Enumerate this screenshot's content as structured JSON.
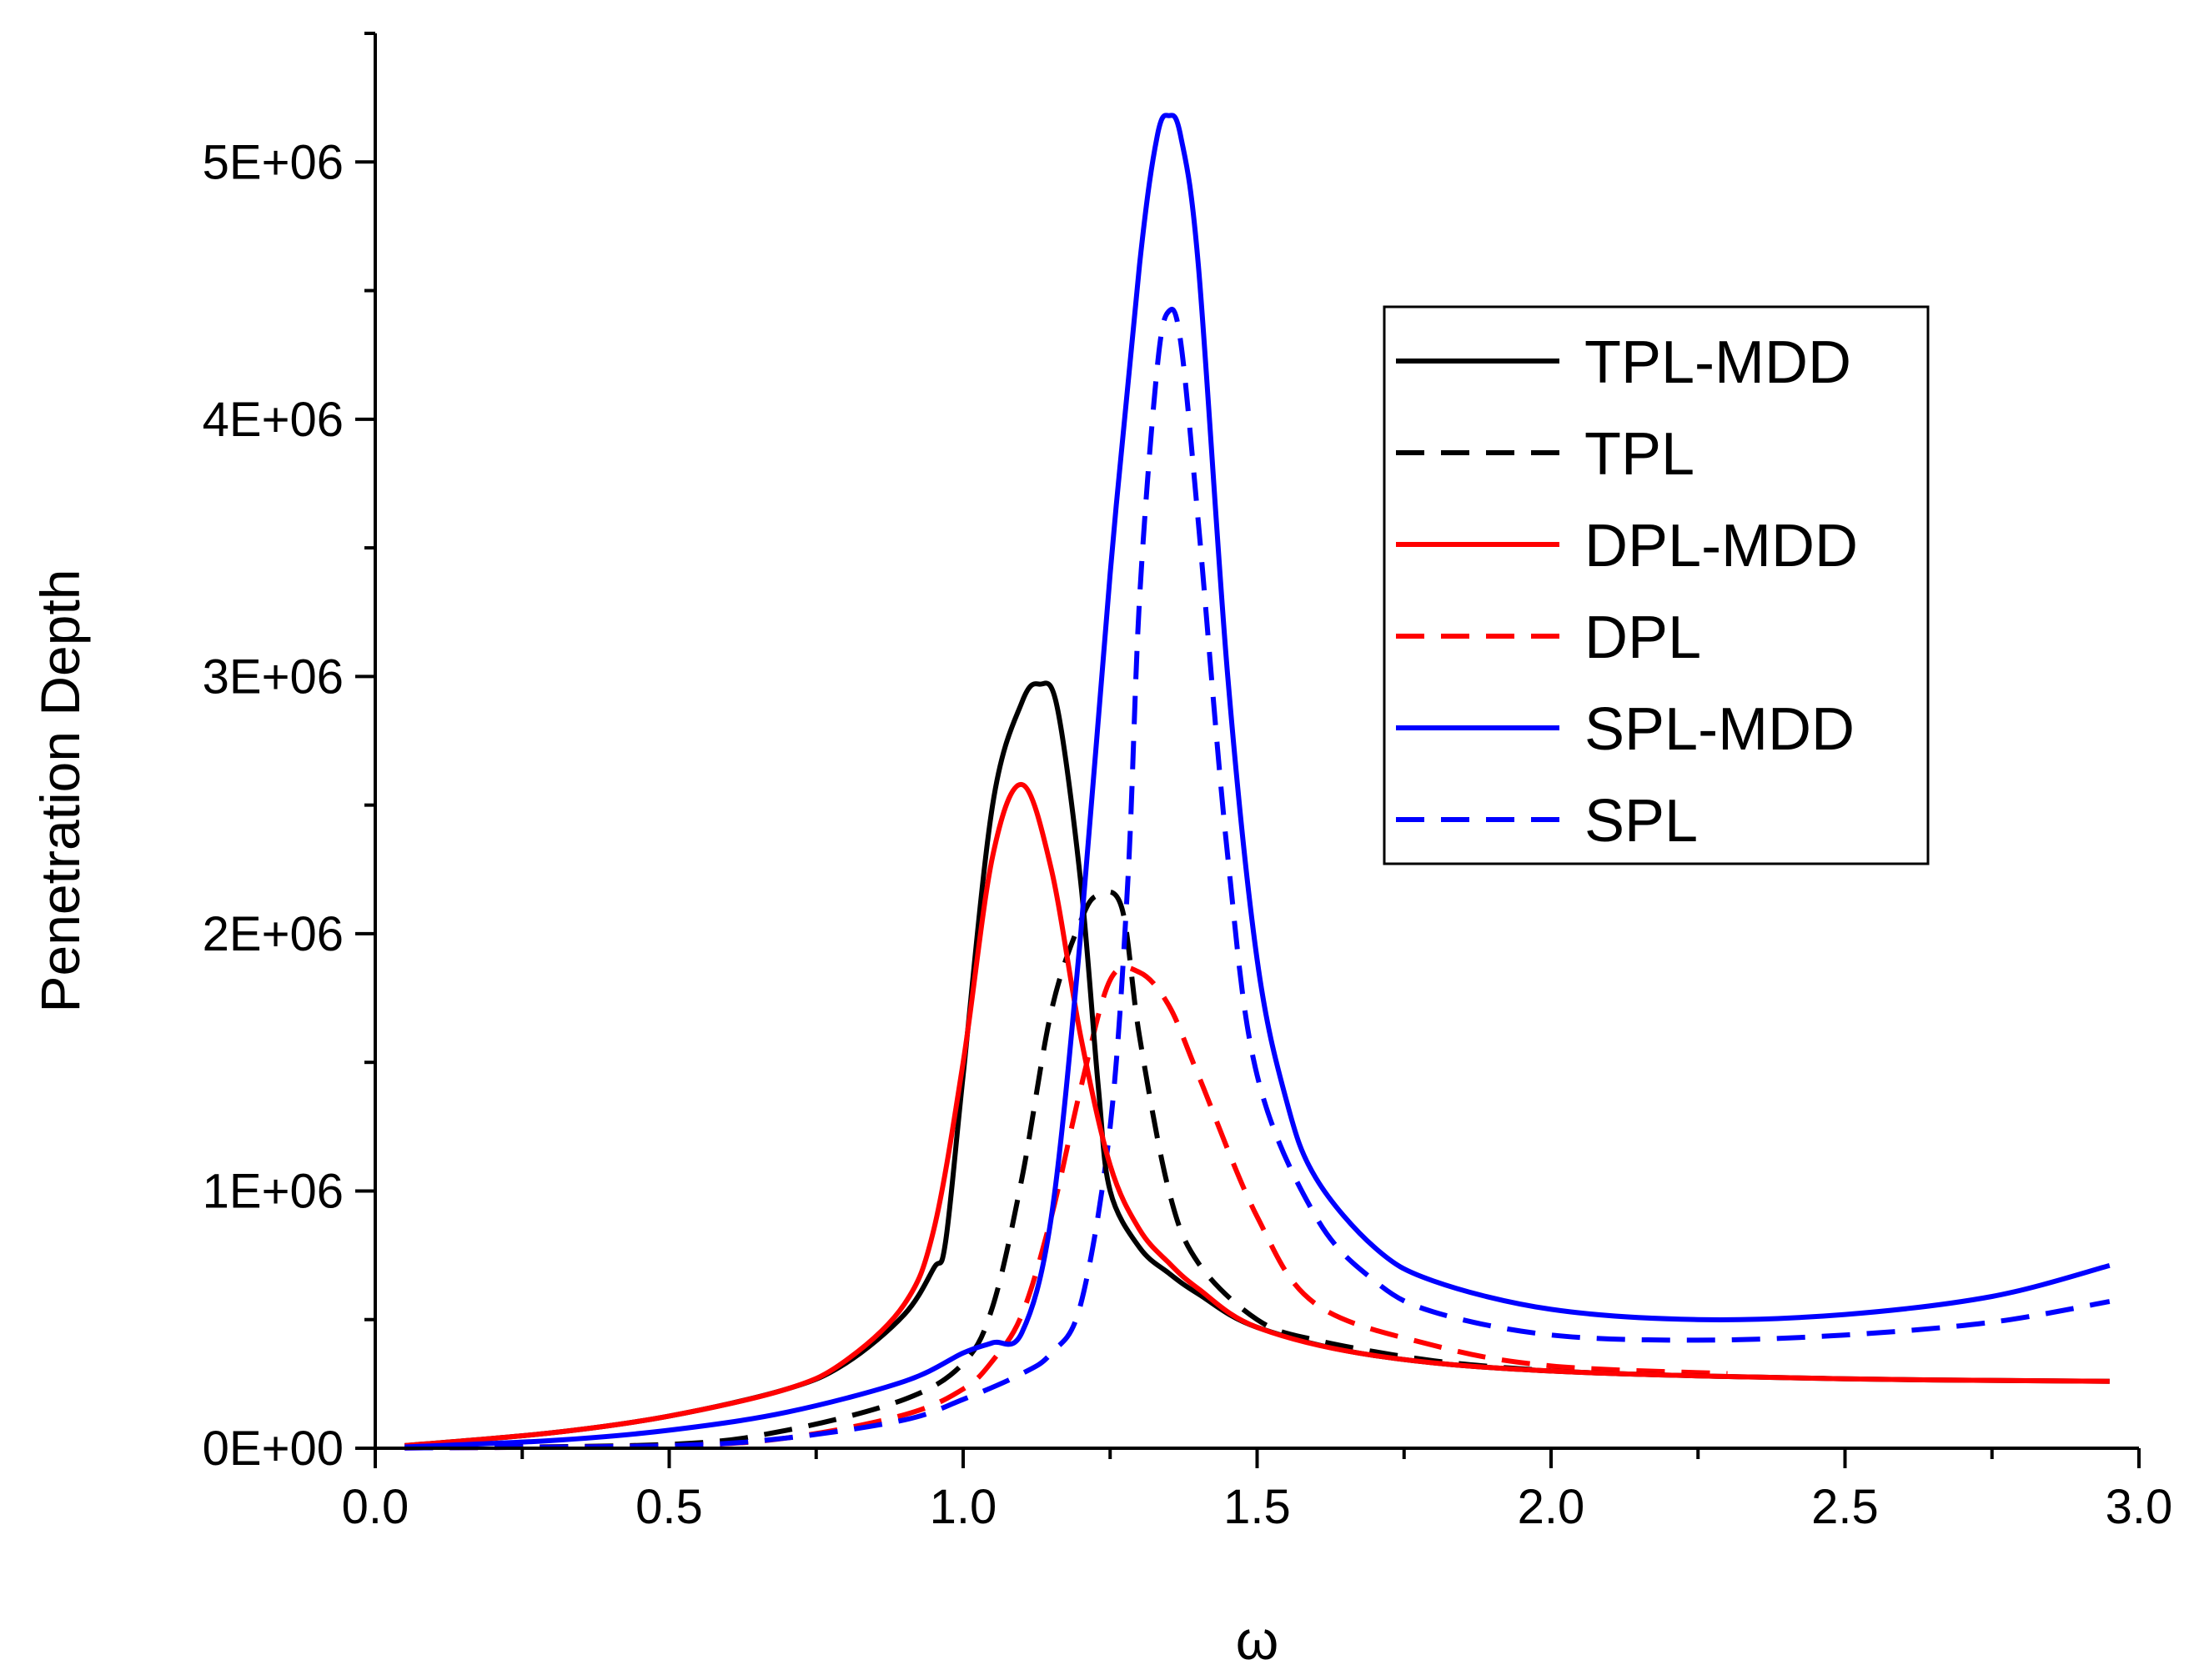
{
  "chart_data": {
    "type": "line",
    "title": "",
    "xlabel": "ω",
    "ylabel": "Penetration Depth",
    "xlim": [
      0.0,
      3.0
    ],
    "ylim": [
      0,
      5500000
    ],
    "x_ticks": [
      0.0,
      0.5,
      1.0,
      1.5,
      2.0,
      2.5,
      3.0
    ],
    "x_tick_labels": [
      "0.0",
      "0.5",
      "1.0",
      "1.5",
      "2.0",
      "2.5",
      "3.0"
    ],
    "y_ticks": [
      0,
      1000000,
      2000000,
      3000000,
      4000000,
      5000000
    ],
    "y_tick_labels": [
      "0E+00",
      "1E+06",
      "2E+06",
      "3E+06",
      "4E+06",
      "5E+06"
    ],
    "grid": false,
    "legend_position": "top-right",
    "series": [
      {
        "name": "TPL-MDD",
        "color": "#000000",
        "dash": "solid",
        "x": [
          0.05,
          0.3,
          0.5,
          0.7,
          0.8,
          0.9,
          0.95,
          0.97,
          1.0,
          1.05,
          1.1,
          1.13,
          1.16,
          1.2,
          1.23,
          1.25,
          1.3,
          1.35,
          1.4,
          1.5,
          1.7,
          2.0,
          2.5,
          2.95
        ],
        "y": [
          10000,
          60000,
          125000,
          230000,
          330000,
          520000,
          700000,
          800000,
          1450000,
          2500000,
          2900000,
          2970000,
          2880000,
          2200000,
          1400000,
          1000000,
          780000,
          680000,
          600000,
          470000,
          360000,
          300000,
          270000,
          260000
        ]
      },
      {
        "name": "TPL",
        "color": "#000000",
        "dash": "dashed",
        "x": [
          0.05,
          0.5,
          0.7,
          0.9,
          1.0,
          1.05,
          1.1,
          1.15,
          1.2,
          1.23,
          1.27,
          1.3,
          1.35,
          1.4,
          1.5,
          1.6,
          1.8,
          2.0
        ],
        "y": [
          2000,
          15000,
          70000,
          190000,
          330000,
          550000,
          1050000,
          1700000,
          2050000,
          2150000,
          2100000,
          1600000,
          1000000,
          720000,
          500000,
          420000,
          340000,
          300000
        ]
      },
      {
        "name": "DPL-MDD",
        "color": "#ff0000",
        "dash": "solid",
        "x": [
          0.05,
          0.3,
          0.5,
          0.7,
          0.8,
          0.9,
          0.95,
          1.0,
          1.05,
          1.1,
          1.15,
          1.2,
          1.25,
          1.3,
          1.35,
          1.4,
          1.5,
          1.7,
          2.0,
          2.5,
          2.95
        ],
        "y": [
          10000,
          60000,
          125000,
          230000,
          340000,
          560000,
          850000,
          1500000,
          2300000,
          2580000,
          2250000,
          1600000,
          1100000,
          850000,
          720000,
          620000,
          470000,
          360000,
          300000,
          270000,
          260000
        ]
      },
      {
        "name": "DPL",
        "color": "#ff0000",
        "dash": "dashed",
        "x": [
          0.05,
          0.5,
          0.7,
          0.9,
          1.0,
          1.05,
          1.1,
          1.15,
          1.2,
          1.25,
          1.3,
          1.35,
          1.4,
          1.5,
          1.6,
          1.8,
          2.0,
          2.3
        ],
        "y": [
          1000,
          10000,
          40000,
          130000,
          230000,
          340000,
          520000,
          900000,
          1400000,
          1820000,
          1850000,
          1720000,
          1450000,
          900000,
          560000,
          400000,
          320000,
          290000
        ]
      },
      {
        "name": "SPL-MDD",
        "color": "#0000ff",
        "dash": "solid",
        "x": [
          0.05,
          0.3,
          0.5,
          0.7,
          0.9,
          1.0,
          1.05,
          1.1,
          1.15,
          1.2,
          1.25,
          1.3,
          1.33,
          1.35,
          1.37,
          1.4,
          1.45,
          1.5,
          1.55,
          1.6,
          1.7,
          1.8,
          2.0,
          2.25,
          2.5,
          2.75,
          2.95
        ],
        "y": [
          5000,
          30000,
          70000,
          140000,
          260000,
          370000,
          410000,
          450000,
          900000,
          2000000,
          3400000,
          4600000,
          5100000,
          5180000,
          5100000,
          4600000,
          3000000,
          1900000,
          1350000,
          1050000,
          780000,
          650000,
          540000,
          500000,
          520000,
          590000,
          710000
        ]
      },
      {
        "name": "SPL",
        "color": "#0000ff",
        "dash": "dashed",
        "x": [
          0.05,
          0.5,
          0.7,
          0.9,
          1.0,
          1.1,
          1.15,
          1.2,
          1.25,
          1.28,
          1.3,
          1.33,
          1.35,
          1.37,
          1.4,
          1.45,
          1.5,
          1.6,
          1.7,
          1.8,
          2.0,
          2.25,
          2.5,
          2.75,
          2.95
        ],
        "y": [
          1000,
          10000,
          40000,
          110000,
          190000,
          290000,
          370000,
          560000,
          1250000,
          2200000,
          3300000,
          4200000,
          4420000,
          4300000,
          3600000,
          2300000,
          1450000,
          900000,
          650000,
          530000,
          440000,
          420000,
          440000,
          490000,
          570000
        ]
      }
    ]
  }
}
